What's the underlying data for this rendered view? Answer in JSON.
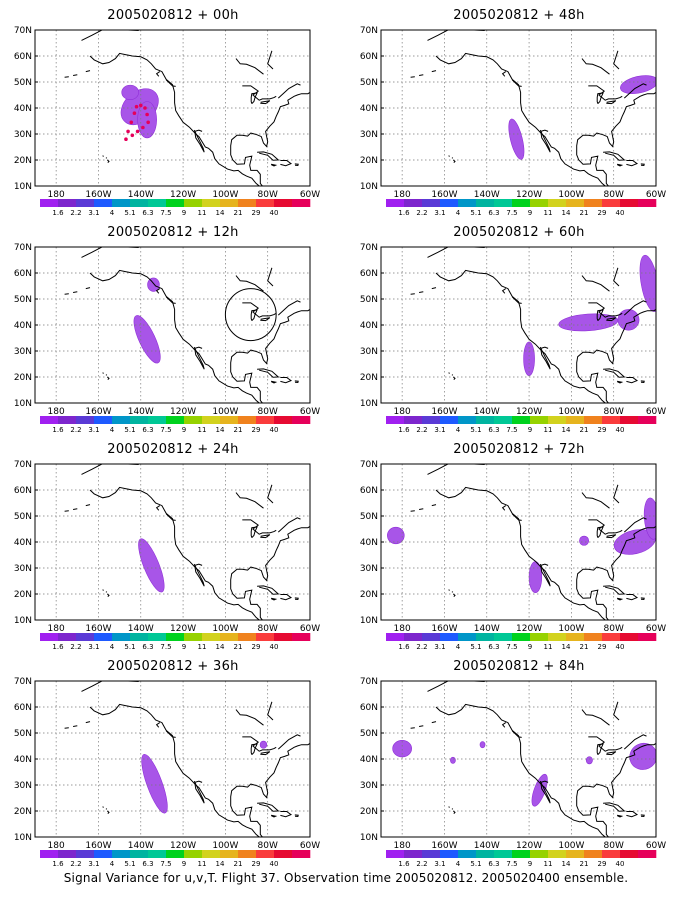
{
  "figure_caption": "Signal Variance for u,v,T. Flight 37. Observation time 2005020812. 2005020400 ensemble.",
  "colors": {
    "scale": [
      "#a020f0",
      "#7d26cd",
      "#5a3ad6",
      "#1e5aff",
      "#0096c8",
      "#00b4a0",
      "#00c896",
      "#00d21e",
      "#96d200",
      "#d2d21e",
      "#e6b41e",
      "#f0821e",
      "#fa3c3c",
      "#e60a32",
      "#e6005a"
    ],
    "shading": "#a855e8",
    "track": "#e6005a",
    "coast": "#000000",
    "grid": "#7a7a7a"
  },
  "colorbar_labels": [
    "1.6",
    "2.2",
    "3.1",
    "4",
    "5.1",
    "6.3",
    "7.5",
    "9",
    "11",
    "14",
    "21",
    "29",
    "40"
  ],
  "chart_data": [
    {
      "type": "heatmap",
      "title": "2005020812 + 00h",
      "lon_ticks": [
        "180",
        "160W",
        "140W",
        "120W",
        "100W",
        "80W",
        "60W"
      ],
      "lat_ticks": [
        "10N",
        "20N",
        "30N",
        "40N",
        "50N",
        "60N",
        "70N"
      ],
      "xlim": [
        -190,
        -60
      ],
      "ylim": [
        10,
        70
      ],
      "grid": true,
      "colorbar_labels": [
        "1.6",
        "2.2",
        "3.1",
        "4",
        "5.1",
        "6.3",
        "7.5",
        "9",
        "11",
        "14",
        "21",
        "29",
        "40"
      ],
      "regions": [
        {
          "lon": -140.5,
          "lat": 40.5,
          "rx": 10,
          "ry": 5.8,
          "rot": -42,
          "level": 1.6
        },
        {
          "lon": -137,
          "lat": 35.5,
          "rx": 4.5,
          "ry": 7,
          "rot": 0,
          "level": 1.6
        },
        {
          "lon": -145,
          "lat": 46,
          "rx": 4,
          "ry": 2.8,
          "rot": 0,
          "level": 1.6
        }
      ],
      "tracks": [
        [
          [
            -147,
            28
          ],
          [
            -146,
            31
          ],
          [
            -144.5,
            34.5
          ],
          [
            -143,
            38
          ],
          [
            -142,
            40.5
          ],
          [
            -140,
            41
          ],
          [
            -138,
            40
          ],
          [
            -137,
            37.5
          ],
          [
            -136.5,
            34.5
          ],
          [
            -139,
            32.5
          ],
          [
            -141.5,
            31
          ],
          [
            -144,
            29.5
          ]
        ]
      ],
      "circles": []
    },
    {
      "type": "heatmap",
      "title": "2005020812 + 48h",
      "lon_ticks": [
        "180",
        "160W",
        "140W",
        "120W",
        "100W",
        "80W",
        "60W"
      ],
      "lat_ticks": [
        "10N",
        "20N",
        "30N",
        "40N",
        "50N",
        "60N",
        "70N"
      ],
      "xlim": [
        -190,
        -60
      ],
      "ylim": [
        10,
        70
      ],
      "grid": true,
      "colorbar_labels": [
        "1.6",
        "2.2",
        "3.1",
        "4",
        "5.1",
        "6.3",
        "7.5",
        "9",
        "11",
        "14",
        "21",
        "29",
        "40"
      ],
      "regions": [
        {
          "lon": -126,
          "lat": 28,
          "rx": 2.8,
          "ry": 8,
          "rot": -14,
          "level": 1.6
        },
        {
          "lon": -68,
          "lat": 49,
          "rx": 9,
          "ry": 3.2,
          "rot": -12,
          "level": 1.6
        }
      ],
      "tracks": [],
      "circles": []
    },
    {
      "type": "heatmap",
      "title": "2005020812 + 12h",
      "lon_ticks": [
        "180",
        "160W",
        "140W",
        "120W",
        "100W",
        "80W",
        "60W"
      ],
      "lat_ticks": [
        "10N",
        "20N",
        "30N",
        "40N",
        "50N",
        "60N",
        "70N"
      ],
      "xlim": [
        -190,
        -60
      ],
      "ylim": [
        10,
        70
      ],
      "grid": true,
      "colorbar_labels": [
        "1.6",
        "2.2",
        "3.1",
        "4",
        "5.1",
        "6.3",
        "7.5",
        "9",
        "11",
        "14",
        "21",
        "29",
        "40"
      ],
      "regions": [
        {
          "lon": -137,
          "lat": 34.5,
          "rx": 3.8,
          "ry": 10,
          "rot": -25,
          "level": 1.6
        },
        {
          "lon": -134,
          "lat": 55.5,
          "rx": 2.8,
          "ry": 2.6,
          "rot": 0,
          "level": 1.6
        }
      ],
      "tracks": [],
      "circles": [
        {
          "lon": -88,
          "lat": 44,
          "r_lon": 12,
          "r_lat": 10
        }
      ]
    },
    {
      "type": "heatmap",
      "title": "2005020812 + 60h",
      "lon_ticks": [
        "180",
        "160W",
        "140W",
        "120W",
        "100W",
        "80W",
        "60W"
      ],
      "lat_ticks": [
        "10N",
        "20N",
        "30N",
        "40N",
        "50N",
        "60N",
        "70N"
      ],
      "xlim": [
        -190,
        -60
      ],
      "ylim": [
        10,
        70
      ],
      "grid": true,
      "colorbar_labels": [
        "1.6",
        "2.2",
        "3.1",
        "4",
        "5.1",
        "6.3",
        "7.5",
        "9",
        "11",
        "14",
        "21",
        "29",
        "40"
      ],
      "regions": [
        {
          "lon": -120,
          "lat": 27,
          "rx": 2.6,
          "ry": 6.5,
          "rot": 0,
          "level": 1.6
        },
        {
          "lon": -92,
          "lat": 41,
          "rx": 14,
          "ry": 3.2,
          "rot": -4,
          "level": 1.6
        },
        {
          "lon": -63,
          "lat": 56,
          "rx": 4,
          "ry": 11,
          "rot": -10,
          "level": 1.6
        },
        {
          "lon": -73,
          "lat": 42,
          "rx": 5,
          "ry": 4,
          "rot": 0,
          "level": 1.6
        }
      ],
      "tracks": [],
      "circles": []
    },
    {
      "type": "heatmap",
      "title": "2005020812 + 24h",
      "lon_ticks": [
        "180",
        "160W",
        "140W",
        "120W",
        "100W",
        "80W",
        "60W"
      ],
      "lat_ticks": [
        "10N",
        "20N",
        "30N",
        "40N",
        "50N",
        "60N",
        "70N"
      ],
      "xlim": [
        -190,
        -60
      ],
      "ylim": [
        10,
        70
      ],
      "grid": true,
      "colorbar_labels": [
        "1.6",
        "2.2",
        "3.1",
        "4",
        "5.1",
        "6.3",
        "7.5",
        "9",
        "11",
        "14",
        "21",
        "29",
        "40"
      ],
      "regions": [
        {
          "lon": -135,
          "lat": 31,
          "rx": 3.6,
          "ry": 11,
          "rot": -22,
          "level": 1.6
        }
      ],
      "tracks": [],
      "circles": []
    },
    {
      "type": "heatmap",
      "title": "2005020812 + 72h",
      "lon_ticks": [
        "180",
        "160W",
        "140W",
        "120W",
        "100W",
        "80W",
        "60W"
      ],
      "lat_ticks": [
        "10N",
        "20N",
        "30N",
        "40N",
        "50N",
        "60N",
        "70N"
      ],
      "xlim": [
        -190,
        -60
      ],
      "ylim": [
        10,
        70
      ],
      "grid": true,
      "colorbar_labels": [
        "1.6",
        "2.2",
        "3.1",
        "4",
        "5.1",
        "6.3",
        "7.5",
        "9",
        "11",
        "14",
        "21",
        "29",
        "40"
      ],
      "regions": [
        {
          "lon": -183,
          "lat": 42.5,
          "rx": 4,
          "ry": 3.2,
          "rot": 0,
          "level": 1.6
        },
        {
          "lon": -117,
          "lat": 26.5,
          "rx": 3,
          "ry": 6,
          "rot": 0,
          "level": 1.6
        },
        {
          "lon": -94,
          "lat": 40.5,
          "rx": 2.2,
          "ry": 1.8,
          "rot": 0,
          "level": 1.6
        },
        {
          "lon": -70,
          "lat": 40,
          "rx": 10,
          "ry": 4.5,
          "rot": -14,
          "level": 1.6
        },
        {
          "lon": -62,
          "lat": 49,
          "rx": 3.5,
          "ry": 8,
          "rot": -5,
          "level": 1.6
        }
      ],
      "tracks": [],
      "circles": []
    },
    {
      "type": "heatmap",
      "title": "2005020812 + 36h",
      "lon_ticks": [
        "180",
        "160W",
        "140W",
        "120W",
        "100W",
        "80W",
        "60W"
      ],
      "lat_ticks": [
        "10N",
        "20N",
        "30N",
        "40N",
        "50N",
        "60N",
        "70N"
      ],
      "xlim": [
        -190,
        -60
      ],
      "ylim": [
        10,
        70
      ],
      "grid": true,
      "colorbar_labels": [
        "1.6",
        "2.2",
        "3.1",
        "4",
        "5.1",
        "6.3",
        "7.5",
        "9",
        "11",
        "14",
        "21",
        "29",
        "40"
      ],
      "regions": [
        {
          "lon": -133.5,
          "lat": 30.5,
          "rx": 3.6,
          "ry": 12,
          "rot": -20,
          "level": 1.6
        },
        {
          "lon": -82,
          "lat": 45.5,
          "rx": 1.6,
          "ry": 1.4,
          "rot": 0,
          "level": 1.6
        }
      ],
      "tracks": [],
      "circles": []
    },
    {
      "type": "heatmap",
      "title": "2005020812 + 84h",
      "lon_ticks": [
        "180",
        "160W",
        "140W",
        "120W",
        "100W",
        "80W",
        "60W"
      ],
      "lat_ticks": [
        "10N",
        "20N",
        "30N",
        "40N",
        "50N",
        "60N",
        "70N"
      ],
      "xlim": [
        -190,
        -60
      ],
      "ylim": [
        10,
        70
      ],
      "grid": true,
      "colorbar_labels": [
        "1.6",
        "2.2",
        "3.1",
        "4",
        "5.1",
        "6.3",
        "7.5",
        "9",
        "11",
        "14",
        "21",
        "29",
        "40"
      ],
      "regions": [
        {
          "lon": -180,
          "lat": 44,
          "rx": 4.5,
          "ry": 3.2,
          "rot": 0,
          "level": 1.6
        },
        {
          "lon": -156,
          "lat": 39.5,
          "rx": 1.2,
          "ry": 1.2,
          "rot": 0,
          "level": 1.6
        },
        {
          "lon": -142,
          "lat": 45.5,
          "rx": 1.2,
          "ry": 1.2,
          "rot": 0,
          "level": 1.6
        },
        {
          "lon": -115,
          "lat": 28,
          "rx": 2.6,
          "ry": 6.5,
          "rot": 20,
          "level": 1.6
        },
        {
          "lon": -91.5,
          "lat": 39.5,
          "rx": 1.5,
          "ry": 1.4,
          "rot": 0,
          "level": 1.6
        },
        {
          "lon": -66,
          "lat": 41,
          "rx": 6.5,
          "ry": 5,
          "rot": -25,
          "level": 1.6
        }
      ],
      "tracks": [],
      "circles": []
    }
  ]
}
